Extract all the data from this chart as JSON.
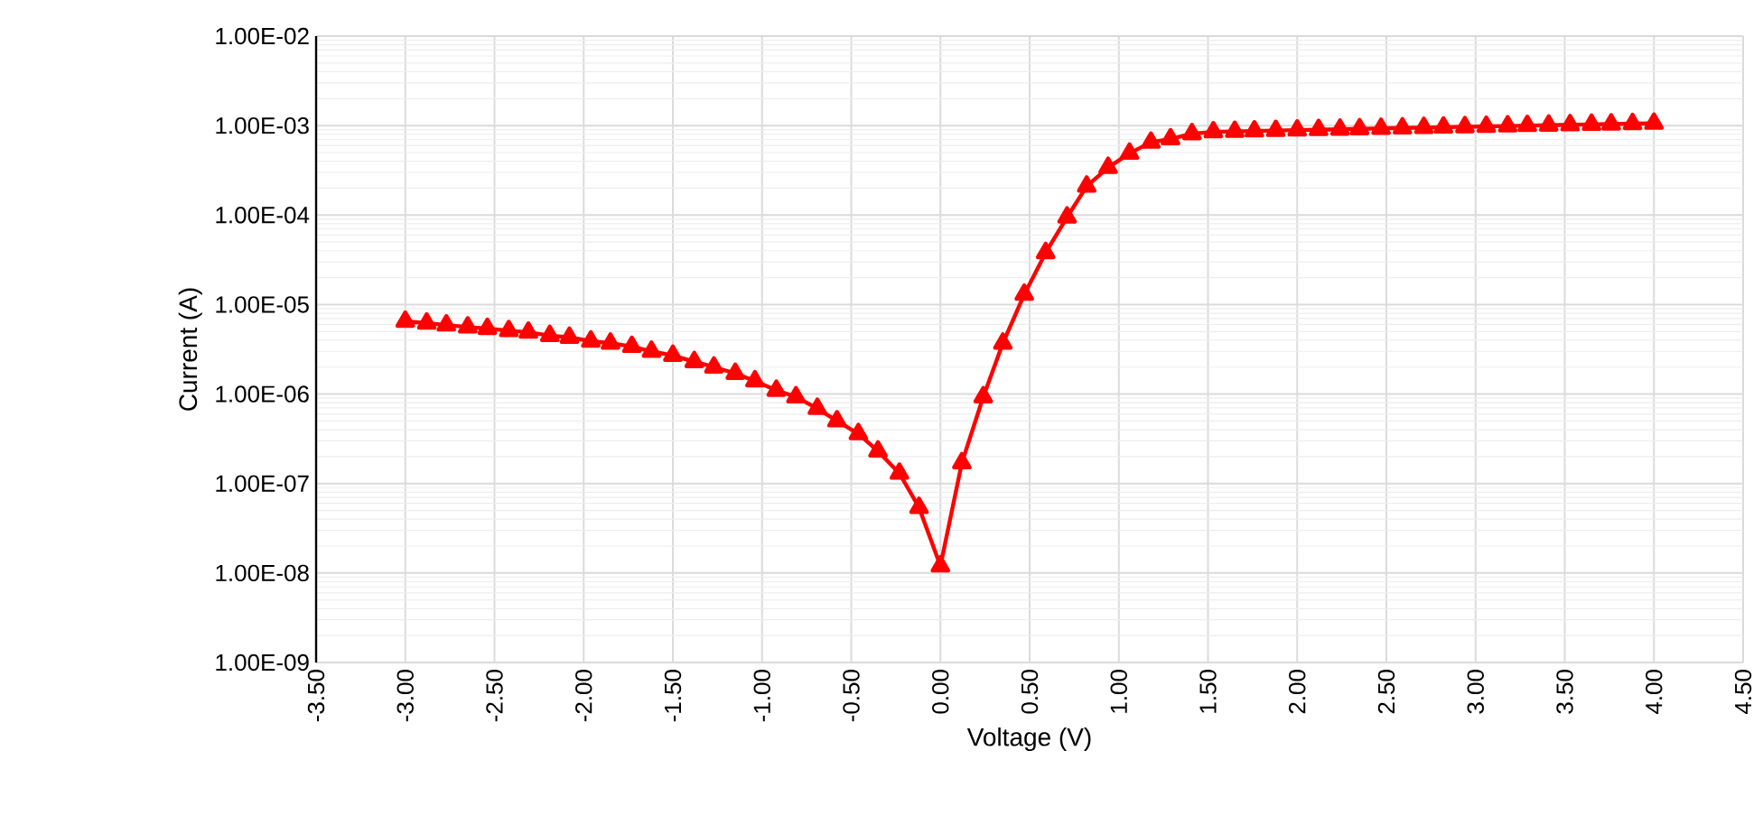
{
  "chart_data": {
    "type": "line",
    "xlabel": "Voltage (V)",
    "ylabel": "Current (A)",
    "log": "y",
    "grid": true,
    "marker": "triangle",
    "line_style": "solid",
    "xlim": [
      -3.5,
      4.5
    ],
    "ylim": [
      1e-09,
      0.01
    ],
    "xticks": [
      {
        "value": -3.5,
        "label": "-3.50"
      },
      {
        "value": -3.0,
        "label": "-3.00"
      },
      {
        "value": -2.5,
        "label": "-2.50"
      },
      {
        "value": -2.0,
        "label": "-2.00"
      },
      {
        "value": -1.5,
        "label": "-1.50"
      },
      {
        "value": -1.0,
        "label": "-1.00"
      },
      {
        "value": -0.5,
        "label": "-0.50"
      },
      {
        "value": 0,
        "label": "0.00"
      },
      {
        "value": 0.5,
        "label": "0.50"
      },
      {
        "value": 1.0,
        "label": "1.00"
      },
      {
        "value": 1.5,
        "label": "1.50"
      },
      {
        "value": 2.0,
        "label": "2.00"
      },
      {
        "value": 2.5,
        "label": "2.50"
      },
      {
        "value": 3.0,
        "label": "3.00"
      },
      {
        "value": 3.5,
        "label": "3.50"
      },
      {
        "value": 4.0,
        "label": "4.00"
      },
      {
        "value": 4.5,
        "label": "4.50"
      }
    ],
    "yticks": [
      {
        "value": 1e-09,
        "label": "1.00E-09"
      },
      {
        "value": 1e-08,
        "label": "1.00E-08"
      },
      {
        "value": 1e-07,
        "label": "1.00E-07"
      },
      {
        "value": 1e-06,
        "label": "1.00E-06"
      },
      {
        "value": 1e-05,
        "label": "1.00E-05"
      },
      {
        "value": 0.0001,
        "label": "1.00E-04"
      },
      {
        "value": 0.001,
        "label": "1.00E-03"
      },
      {
        "value": 0.01,
        "label": "1.00E-02"
      }
    ],
    "series": [
      {
        "color": "#ff0000",
        "x": [
          -3.0,
          -2.88,
          -2.77,
          -2.65,
          -2.54,
          -2.42,
          -2.31,
          -2.19,
          -2.08,
          -1.96,
          -1.85,
          -1.73,
          -1.62,
          -1.5,
          -1.38,
          -1.27,
          -1.15,
          -1.04,
          -0.92,
          -0.81,
          -0.69,
          -0.58,
          -0.46,
          -0.35,
          -0.23,
          -0.12,
          0.0,
          0.12,
          0.24,
          0.35,
          0.47,
          0.59,
          0.71,
          0.82,
          0.94,
          1.06,
          1.18,
          1.29,
          1.41,
          1.53,
          1.65,
          1.76,
          1.88,
          2.0,
          2.12,
          2.24,
          2.35,
          2.47,
          2.59,
          2.71,
          2.82,
          2.94,
          3.06,
          3.18,
          3.29,
          3.41,
          3.53,
          3.65,
          3.76,
          3.88,
          4.0
        ],
        "values": [
          6.5e-06,
          6.2e-06,
          5.9e-06,
          5.6e-06,
          5.4e-06,
          5.1e-06,
          4.9e-06,
          4.5e-06,
          4.3e-06,
          3.9e-06,
          3.7e-06,
          3.4e-06,
          3e-06,
          2.7e-06,
          2.3e-06,
          2e-06,
          1.7e-06,
          1.4e-06,
          1.1e-06,
          9.3e-07,
          6.9e-07,
          5e-07,
          3.6e-07,
          2.3e-07,
          1.3e-07,
          5.4e-08,
          1.2e-08,
          1.7e-07,
          9.3e-07,
          3.7e-06,
          1.3e-05,
          3.8e-05,
          9.5e-05,
          0.00021,
          0.00034,
          0.00049,
          0.00065,
          0.00071,
          0.00081,
          0.00085,
          0.00086,
          0.00087,
          0.00088,
          0.00089,
          0.0009,
          0.00091,
          0.00092,
          0.00093,
          0.00094,
          0.00095,
          0.00096,
          0.00097,
          0.00098,
          0.00099,
          0.001,
          0.00101,
          0.00102,
          0.00103,
          0.00104,
          0.00105,
          0.00106
        ]
      }
    ]
  }
}
